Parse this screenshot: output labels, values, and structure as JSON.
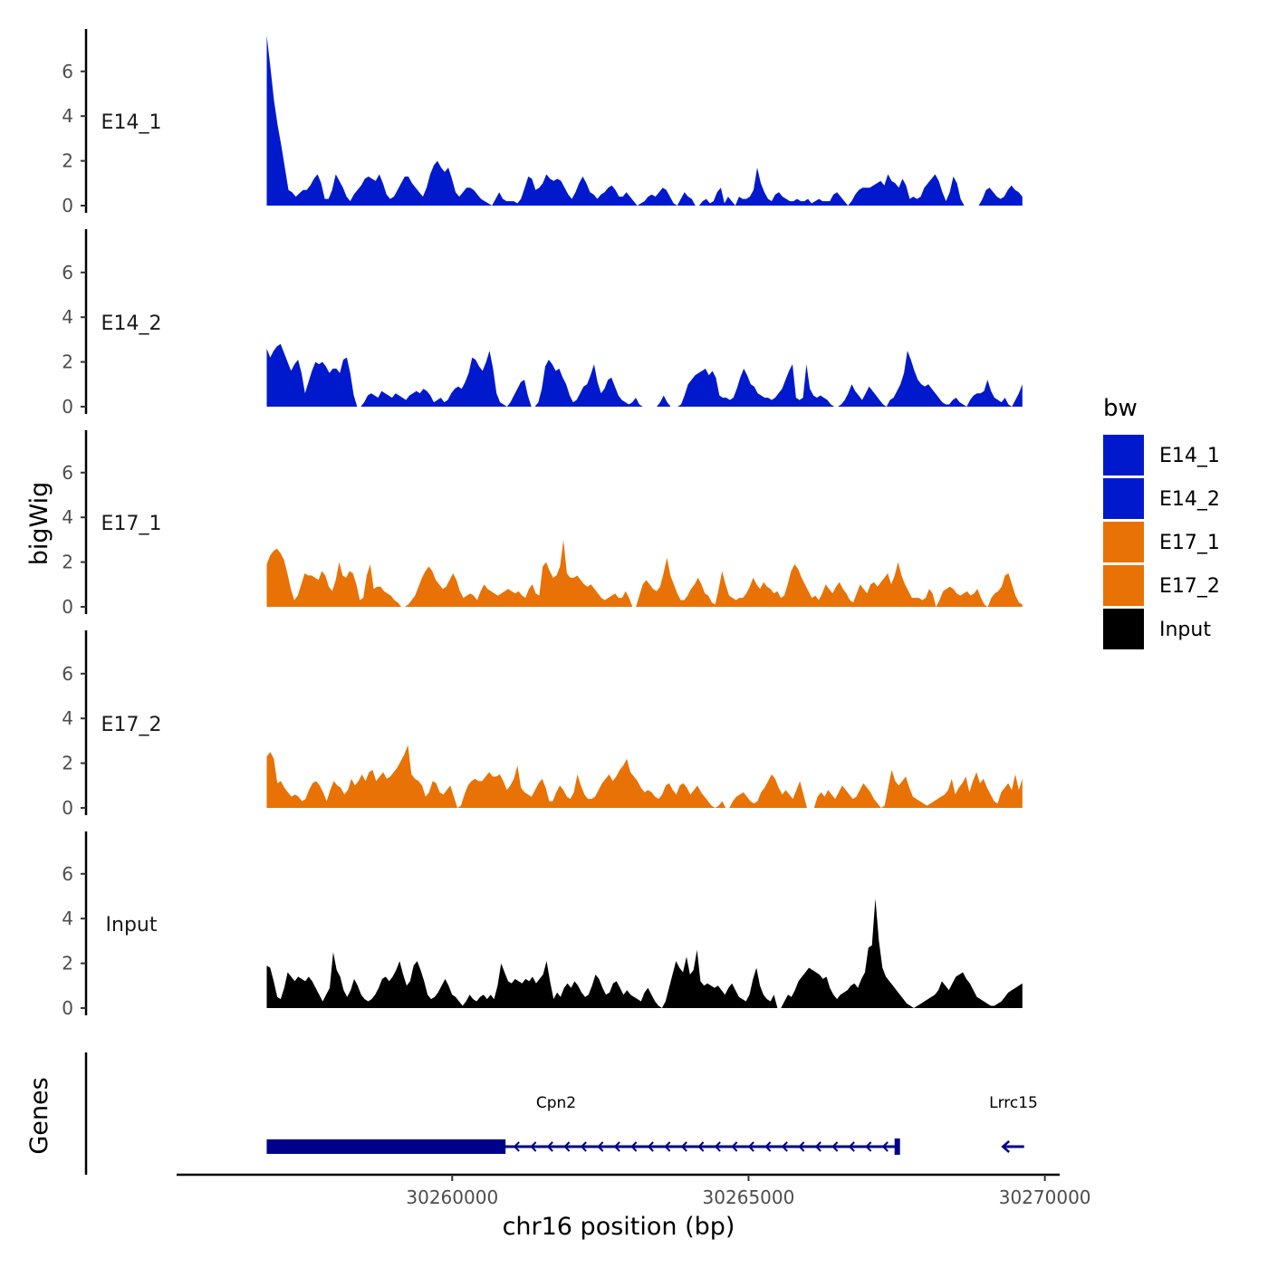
{
  "chart_data": {
    "type": "area",
    "chromosome": "chr16",
    "xlabel": "chr16 position (bp)",
    "ylabel": "bigWig",
    "genes_label": "Genes",
    "xlim": [
      30255350,
      30270250
    ],
    "ylim": [
      0,
      8
    ],
    "x_ticks": [
      30260000,
      30265000,
      30270000
    ],
    "x_tick_labels": [
      "30260000",
      "30265000",
      "30270000"
    ],
    "y_ticks": [
      0,
      2,
      4,
      6
    ],
    "y_tick_labels": [
      "0",
      "2",
      "4",
      "6"
    ],
    "data_range": [
      30256870,
      30269620
    ],
    "tracks": [
      {
        "name": "E14_1",
        "color": "#0019CC",
        "values": [
          7.6,
          6.2,
          4.7,
          3.6,
          2.7,
          1.7,
          0.7,
          0.6,
          0.4,
          0.55,
          0.7,
          0.7,
          0.9,
          1.2,
          1.4,
          1.0,
          0.3,
          0.3,
          0.7,
          1.4,
          1.1,
          0.8,
          0.4,
          0.2,
          0.5,
          0.7,
          0.9,
          1.2,
          1.3,
          1.2,
          1.1,
          1.4,
          1.0,
          0.5,
          0.3,
          0.4,
          0.7,
          1.0,
          1.3,
          1.3,
          1.0,
          0.8,
          0.6,
          0.4,
          0.8,
          1.4,
          1.8,
          2.0,
          1.7,
          1.5,
          1.7,
          1.2,
          0.6,
          0.4,
          0.6,
          0.8,
          0.8,
          0.7,
          0.5,
          0.3,
          0.2,
          0.1,
          0.0,
          0.3,
          0.6,
          0.3,
          0.2,
          0.2,
          0.2,
          0.1,
          0.3,
          0.8,
          1.3,
          1.2,
          0.7,
          0.8,
          1.0,
          1.4,
          1.2,
          1.1,
          1.2,
          1.1,
          0.8,
          0.5,
          0.3,
          0.6,
          1.0,
          1.3,
          1.0,
          0.6,
          0.5,
          0.3,
          0.5,
          0.6,
          0.8,
          0.9,
          0.7,
          0.4,
          0.4,
          0.6,
          0.4,
          0.2,
          0.0,
          0.1,
          0.2,
          0.4,
          0.5,
          0.4,
          0.6,
          0.8,
          0.7,
          0.4,
          0.1,
          0.0,
          0.3,
          0.6,
          0.4,
          0.3,
          0.0,
          0.0,
          0.2,
          0.3,
          0.1,
          0.2,
          0.6,
          0.8,
          0.1,
          0.4,
          0.2,
          0.0,
          0.4,
          0.3,
          0.3,
          0.4,
          0.7,
          1.7,
          1.0,
          0.6,
          0.3,
          0.2,
          0.5,
          0.6,
          0.4,
          0.3,
          0.2,
          0.2,
          0.3,
          0.2,
          0.2,
          0.3,
          0.1,
          0.2,
          0.3,
          0.2,
          0.2,
          0.2,
          0.5,
          0.6,
          0.4,
          0.2,
          0.0,
          0.2,
          0.5,
          0.7,
          0.8,
          0.8,
          0.8,
          0.9,
          1.0,
          1.1,
          0.9,
          1.4,
          1.1,
          1.0,
          0.8,
          1.2,
          0.9,
          0.3,
          0.4,
          0.3,
          0.4,
          0.8,
          1.0,
          1.2,
          1.4,
          1.1,
          0.6,
          0.2,
          0.6,
          1.3,
          1.0,
          0.3,
          0.0,
          0.0,
          0.0,
          0.0,
          0.0,
          0.3,
          0.7,
          0.8,
          0.6,
          0.4,
          0.3,
          0.4,
          0.7,
          0.9,
          0.7,
          0.6,
          0.4
        ]
      },
      {
        "name": "E14_2",
        "color": "#0019CC",
        "values": [
          2.6,
          2.2,
          2.5,
          2.7,
          2.8,
          2.4,
          2.0,
          1.6,
          1.9,
          2.1,
          1.5,
          0.6,
          1.1,
          1.6,
          2.0,
          1.9,
          2.0,
          1.8,
          1.5,
          1.7,
          1.7,
          1.5,
          2.1,
          2.2,
          1.5,
          0.5,
          0.0,
          0.0,
          0.2,
          0.5,
          0.6,
          0.5,
          0.4,
          0.7,
          0.6,
          0.5,
          0.4,
          0.6,
          0.5,
          0.4,
          0.3,
          0.5,
          0.6,
          0.7,
          0.6,
          0.8,
          0.7,
          0.5,
          0.2,
          0.3,
          0.4,
          0.2,
          0.3,
          0.6,
          0.8,
          0.9,
          0.8,
          1.1,
          1.5,
          2.2,
          2.1,
          1.8,
          1.6,
          2.0,
          2.5,
          1.7,
          0.6,
          0.2,
          0.1,
          0.0,
          0.2,
          0.5,
          0.8,
          1.1,
          1.2,
          0.5,
          0.0,
          0.0,
          0.2,
          0.8,
          1.8,
          2.1,
          1.9,
          1.6,
          1.7,
          1.3,
          1.0,
          0.5,
          0.2,
          0.3,
          0.6,
          0.9,
          1.0,
          1.4,
          1.9,
          1.1,
          0.6,
          0.8,
          1.2,
          1.3,
          0.9,
          0.5,
          0.3,
          0.2,
          0.1,
          0.2,
          0.4,
          0.1,
          0.0,
          0.0,
          0.0,
          0.0,
          0.0,
          0.2,
          0.5,
          0.2,
          0.0,
          0.0,
          0.0,
          0.1,
          0.5,
          1.0,
          1.2,
          1.4,
          1.5,
          1.6,
          1.7,
          1.4,
          1.6,
          1.3,
          0.5,
          0.4,
          0.4,
          0.3,
          0.4,
          0.8,
          1.3,
          1.7,
          1.4,
          1.0,
          0.9,
          0.6,
          0.5,
          0.4,
          0.4,
          0.3,
          0.4,
          0.6,
          0.8,
          1.2,
          1.6,
          1.9,
          0.4,
          0.3,
          0.4,
          1.9,
          0.8,
          0.5,
          0.4,
          0.5,
          0.4,
          0.3,
          0.1,
          0.0,
          0.0,
          0.1,
          0.3,
          0.6,
          1.0,
          0.7,
          0.5,
          0.3,
          0.6,
          0.9,
          0.7,
          0.5,
          0.3,
          0.1,
          0.0,
          0.3,
          0.4,
          0.7,
          1.0,
          1.5,
          2.5,
          2.1,
          1.6,
          1.2,
          1.0,
          0.9,
          1.0,
          0.8,
          0.6,
          0.4,
          0.2,
          0.1,
          0.1,
          0.3,
          0.4,
          0.2,
          0.1,
          0.0,
          0.3,
          0.5,
          0.6,
          0.6,
          0.7,
          1.2,
          0.7,
          0.4,
          0.3,
          0.2,
          0.4,
          0.1,
          0.0,
          0.3,
          0.6,
          1.0
        ]
      },
      {
        "name": "E17_1",
        "color": "#E87205",
        "values": [
          1.9,
          2.3,
          2.5,
          2.6,
          2.4,
          2.1,
          1.5,
          0.8,
          0.3,
          0.5,
          1.0,
          1.5,
          1.4,
          1.4,
          1.3,
          1.2,
          1.6,
          1.4,
          0.9,
          0.7,
          1.2,
          2.0,
          1.4,
          1.3,
          1.6,
          1.5,
          1.0,
          0.3,
          0.4,
          1.4,
          1.9,
          0.8,
          0.9,
          0.9,
          0.7,
          0.6,
          0.5,
          0.3,
          0.2,
          0.0,
          0.0,
          0.1,
          0.3,
          0.5,
          0.9,
          1.3,
          1.6,
          1.8,
          1.6,
          1.2,
          1.0,
          0.8,
          0.9,
          1.2,
          1.5,
          1.2,
          0.7,
          0.4,
          0.5,
          0.6,
          0.5,
          0.3,
          0.7,
          1.0,
          0.8,
          0.7,
          0.6,
          0.5,
          0.6,
          0.7,
          0.8,
          0.7,
          0.6,
          0.7,
          0.5,
          0.4,
          0.8,
          1.0,
          0.6,
          0.5,
          1.8,
          2.0,
          1.6,
          1.3,
          1.4,
          1.8,
          3.0,
          1.5,
          1.3,
          1.3,
          1.4,
          1.2,
          1.0,
          0.9,
          1.0,
          0.8,
          0.6,
          0.4,
          0.3,
          0.4,
          0.5,
          0.6,
          0.4,
          0.4,
          0.7,
          0.4,
          0.0,
          0.0,
          0.5,
          1.0,
          1.2,
          1.0,
          0.8,
          0.7,
          0.9,
          1.5,
          2.2,
          1.4,
          1.0,
          0.6,
          0.3,
          0.3,
          0.5,
          0.8,
          1.0,
          1.3,
          1.0,
          0.6,
          0.5,
          0.2,
          0.1,
          0.8,
          1.6,
          1.0,
          0.5,
          0.4,
          0.3,
          0.4,
          0.4,
          0.6,
          0.9,
          1.3,
          1.0,
          0.8,
          1.1,
          0.9,
          0.8,
          0.6,
          0.7,
          0.4,
          0.5,
          1.0,
          1.6,
          1.9,
          1.7,
          1.3,
          1.0,
          0.7,
          0.4,
          0.5,
          0.3,
          0.6,
          1.0,
          0.8,
          0.6,
          0.9,
          1.1,
          0.8,
          0.6,
          0.3,
          0.2,
          0.6,
          1.0,
          0.8,
          0.6,
          1.0,
          1.1,
          0.9,
          1.1,
          1.3,
          1.5,
          1.0,
          1.4,
          2.0,
          1.4,
          1.0,
          0.7,
          0.4,
          0.4,
          0.4,
          0.3,
          0.4,
          0.8,
          0.6,
          0.0,
          0.3,
          0.7,
          0.8,
          0.9,
          0.8,
          0.6,
          0.5,
          0.6,
          0.7,
          0.5,
          0.6,
          0.8,
          0.4,
          0.1,
          0.0,
          0.4,
          0.6,
          0.7,
          0.9,
          1.4,
          1.5,
          1.0,
          0.5,
          0.2,
          0.1
        ]
      },
      {
        "name": "E17_2",
        "color": "#E87205",
        "values": [
          2.3,
          2.5,
          2.2,
          1.1,
          1.2,
          0.9,
          0.7,
          0.5,
          0.6,
          0.5,
          0.3,
          0.4,
          0.8,
          1.1,
          1.2,
          1.0,
          0.7,
          0.3,
          0.8,
          1.2,
          1.0,
          0.9,
          0.6,
          0.8,
          1.3,
          1.0,
          1.2,
          1.5,
          1.2,
          1.6,
          1.7,
          1.2,
          1.4,
          1.6,
          1.3,
          1.4,
          1.6,
          1.8,
          2.1,
          2.4,
          2.8,
          1.5,
          1.3,
          1.2,
          1.0,
          0.5,
          0.7,
          1.2,
          1.1,
          0.7,
          0.6,
          0.8,
          1.0,
          0.5,
          0.0,
          0.1,
          0.6,
          1.0,
          1.2,
          1.3,
          1.2,
          1.2,
          1.4,
          1.6,
          1.4,
          1.4,
          1.5,
          1.2,
          0.8,
          1.0,
          1.3,
          1.9,
          0.9,
          0.7,
          0.6,
          0.5,
          0.8,
          1.1,
          1.3,
          0.9,
          0.3,
          0.3,
          0.7,
          1.0,
          0.8,
          0.5,
          0.4,
          0.7,
          1.5,
          1.0,
          0.6,
          0.4,
          0.4,
          0.5,
          0.8,
          1.1,
          1.3,
          1.5,
          1.2,
          1.4,
          1.7,
          1.9,
          2.2,
          1.6,
          1.4,
          1.2,
          0.9,
          0.7,
          0.8,
          0.7,
          0.5,
          0.4,
          0.6,
          1.0,
          1.1,
          0.8,
          0.6,
          1.0,
          1.1,
          0.9,
          0.6,
          0.8,
          1.0,
          0.7,
          0.5,
          0.3,
          0.1,
          0.0,
          0.1,
          0.3,
          0.0,
          0.0,
          0.3,
          0.5,
          0.6,
          0.7,
          0.5,
          0.3,
          0.2,
          0.3,
          0.7,
          0.9,
          1.2,
          1.5,
          1.3,
          0.9,
          0.6,
          0.8,
          0.6,
          0.4,
          0.8,
          1.2,
          0.6,
          0.0,
          0.0,
          0.0,
          0.5,
          0.7,
          0.5,
          0.8,
          0.6,
          0.4,
          0.7,
          1.0,
          0.8,
          0.6,
          0.4,
          0.5,
          0.8,
          1.1,
          0.9,
          0.7,
          0.4,
          0.2,
          0.0,
          0.1,
          0.9,
          1.7,
          1.2,
          1.0,
          1.2,
          1.4,
          0.9,
          0.5,
          0.4,
          0.3,
          0.2,
          0.1,
          0.2,
          0.3,
          0.4,
          0.5,
          0.6,
          0.8,
          1.3,
          0.6,
          0.9,
          1.1,
          1.4,
          0.7,
          1.2,
          1.6,
          1.1,
          1.3,
          0.9,
          0.6,
          0.3,
          0.2,
          0.7,
          0.9,
          1.1,
          0.8,
          1.5,
          0.8,
          1.3
        ]
      },
      {
        "name": "Input",
        "color": "#000000",
        "values": [
          1.9,
          1.8,
          1.2,
          0.5,
          0.4,
          0.9,
          1.6,
          1.4,
          1.2,
          1.4,
          1.3,
          1.2,
          1.4,
          1.2,
          0.9,
          0.6,
          0.3,
          0.6,
          0.9,
          2.5,
          1.7,
          1.4,
          0.8,
          0.5,
          0.8,
          1.3,
          1.0,
          0.6,
          0.4,
          0.3,
          0.4,
          0.6,
          0.9,
          1.3,
          1.4,
          1.2,
          1.4,
          1.7,
          2.1,
          1.5,
          1.0,
          1.2,
          1.9,
          2.1,
          1.7,
          1.2,
          0.6,
          0.4,
          0.5,
          0.7,
          1.0,
          1.3,
          1.0,
          0.6,
          0.5,
          0.3,
          0.1,
          0.3,
          0.6,
          0.4,
          0.3,
          0.5,
          0.6,
          0.4,
          0.6,
          0.4,
          1.0,
          2.0,
          1.6,
          1.2,
          1.1,
          1.3,
          1.2,
          1.1,
          1.3,
          1.2,
          1.4,
          1.1,
          1.3,
          1.5,
          2.1,
          1.2,
          0.4,
          0.7,
          0.5,
          0.9,
          1.1,
          0.9,
          1.2,
          1.0,
          0.7,
          0.5,
          0.6,
          1.0,
          1.5,
          1.3,
          0.9,
          0.6,
          0.7,
          1.1,
          1.2,
          0.9,
          0.6,
          0.8,
          0.6,
          0.5,
          0.4,
          0.3,
          0.7,
          0.9,
          0.6,
          0.3,
          0.1,
          0.0,
          0.3,
          0.9,
          1.5,
          2.1,
          1.8,
          1.6,
          2.3,
          1.5,
          1.7,
          2.6,
          1.2,
          1.0,
          1.1,
          1.0,
          0.9,
          1.0,
          0.8,
          0.6,
          0.9,
          1.1,
          0.8,
          0.5,
          0.4,
          0.3,
          0.6,
          1.3,
          1.8,
          1.0,
          0.6,
          0.4,
          0.3,
          0.6,
          0.0,
          0.0,
          0.3,
          0.6,
          0.5,
          0.8,
          1.2,
          1.4,
          1.6,
          1.8,
          1.7,
          1.6,
          1.5,
          1.3,
          1.4,
          0.9,
          0.6,
          0.4,
          0.6,
          0.7,
          0.8,
          1.0,
          1.1,
          0.9,
          1.3,
          1.6,
          2.7,
          2.8,
          4.9,
          3.0,
          1.8,
          1.4,
          1.2,
          1.0,
          0.8,
          0.6,
          0.4,
          0.2,
          0.1,
          0.0,
          0.1,
          0.2,
          0.3,
          0.4,
          0.5,
          0.6,
          0.8,
          1.2,
          1.0,
          0.8,
          1.1,
          1.4,
          1.5,
          1.6,
          1.3,
          1.1,
          0.8,
          0.5,
          0.4,
          0.3,
          0.2,
          0.1,
          0.1,
          0.2,
          0.3,
          0.5,
          0.7,
          0.8,
          0.9,
          1.0,
          1.1
        ]
      }
    ],
    "genes": [
      {
        "name": "Cpn2",
        "strand": "-",
        "tx_start": 30256870,
        "tx_end": 30267510,
        "thick_start": 30256870,
        "thick_end": 30260900,
        "color": "#00008B"
      },
      {
        "name": "Lrrc15",
        "strand": "-",
        "tx_start": 30269290,
        "tx_end": 30269650,
        "color": "#00008B"
      }
    ],
    "legend": {
      "title": "bw",
      "position": "right",
      "entries": [
        {
          "label": "E14_1",
          "color": "#0019CC"
        },
        {
          "label": "E14_2",
          "color": "#0019CC"
        },
        {
          "label": "E17_1",
          "color": "#E87205"
        },
        {
          "label": "E17_2",
          "color": "#E87205"
        },
        {
          "label": "Input",
          "color": "#000000"
        }
      ]
    }
  }
}
